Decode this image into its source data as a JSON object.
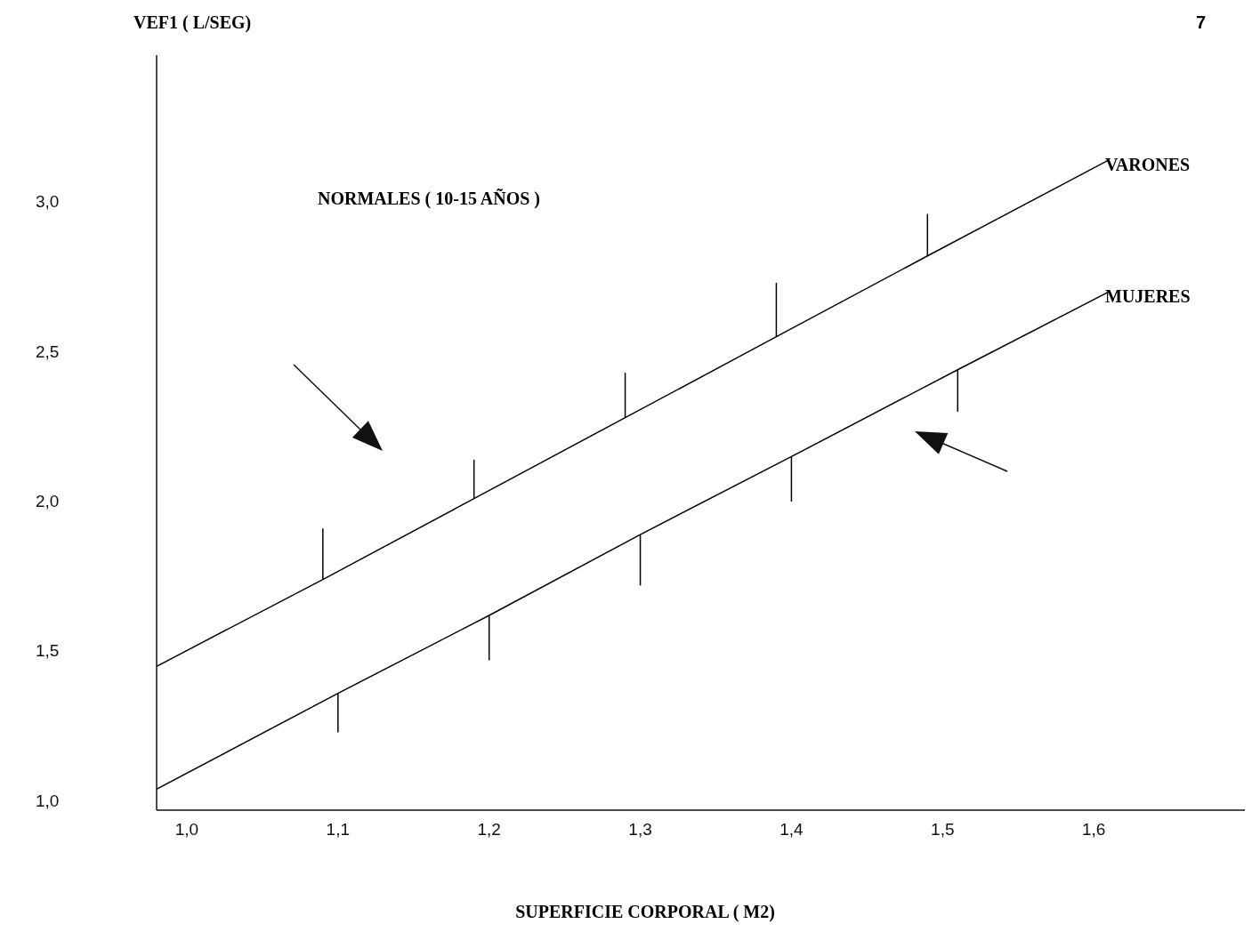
{
  "chart_data": {
    "type": "line",
    "title": "NORMALES ( 10-15 AÑOS )",
    "xlabel": "SUPERFICIE CORPORAL ( M2)",
    "ylabel": "VEF1 ( L/SEG)",
    "annotations": [
      "7"
    ],
    "xlim": [
      0.98,
      1.7
    ],
    "ylim": [
      0.97,
      3.49
    ],
    "xticks": [
      {
        "value": 1.0,
        "label": "1,0"
      },
      {
        "value": 1.1,
        "label": "1,1"
      },
      {
        "value": 1.2,
        "label": "1,2"
      },
      {
        "value": 1.3,
        "label": "1,3"
      },
      {
        "value": 1.4,
        "label": "1,4"
      },
      {
        "value": 1.5,
        "label": "1,5"
      },
      {
        "value": 1.6,
        "label": "1,6"
      }
    ],
    "yticks": [
      {
        "value": 1.0,
        "label": "1,0"
      },
      {
        "value": 1.5,
        "label": "1,5"
      },
      {
        "value": 2.0,
        "label": "2,0"
      },
      {
        "value": 2.5,
        "label": "2,5"
      },
      {
        "value": 3.0,
        "label": "3,0"
      }
    ],
    "grid": false,
    "legend": false,
    "marker": "none",
    "line_style": "solid",
    "series": [
      {
        "name": "VARONES",
        "color": "#000000",
        "x": [
          0.98,
          1.09,
          1.19,
          1.29,
          1.39,
          1.49,
          1.61
        ],
        "values": [
          1.45,
          1.74,
          2.01,
          2.28,
          2.55,
          2.82,
          3.14
        ],
        "errors": [
          null,
          [
            1.74,
            1.91
          ],
          [
            2.01,
            2.14
          ],
          [
            2.28,
            2.43
          ],
          [
            2.55,
            2.73
          ],
          [
            2.82,
            2.96
          ],
          null
        ]
      },
      {
        "name": "MUJERES",
        "color": "#000000",
        "x": [
          0.98,
          1.1,
          1.2,
          1.3,
          1.4,
          1.51,
          1.61
        ],
        "values": [
          1.04,
          1.36,
          1.62,
          1.89,
          2.15,
          2.44,
          2.7
        ],
        "errors": [
          null,
          [
            1.23,
            1.36
          ],
          [
            1.47,
            1.62
          ],
          [
            1.72,
            1.89
          ],
          [
            2.0,
            2.15
          ],
          [
            2.3,
            2.44
          ],
          null
        ]
      }
    ]
  }
}
